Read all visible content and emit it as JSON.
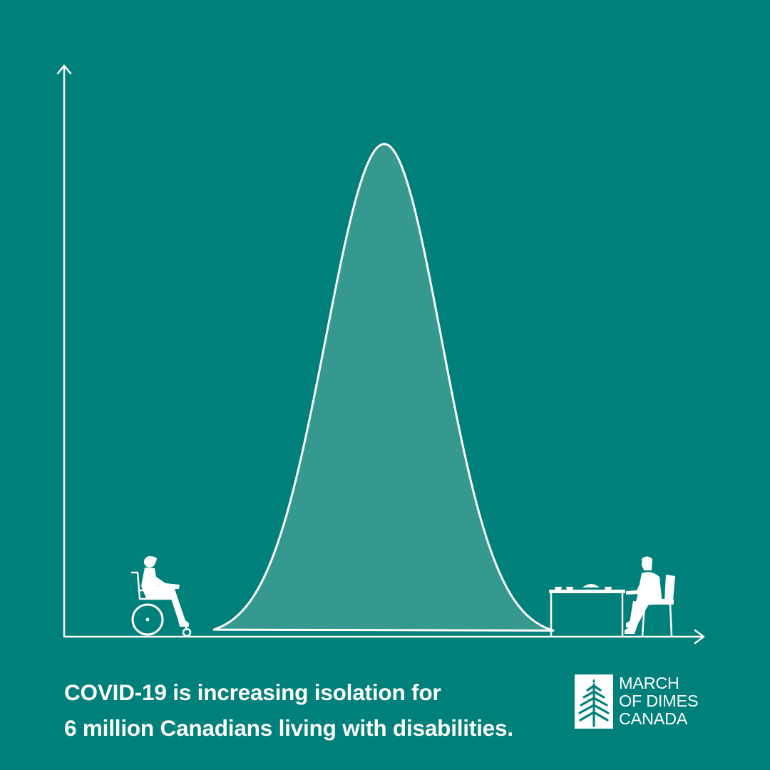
{
  "colors": {
    "background": "#00807a",
    "curve_fill": "#35998f",
    "line": "#ffffff"
  },
  "chart_data": {
    "type": "area",
    "shape": "bell-curve",
    "title": "",
    "xlabel": "",
    "ylabel": "",
    "grid": false,
    "legend": "none",
    "annotations": [
      {
        "icon": "wheelchair-person-icon",
        "position": "left"
      },
      {
        "icon": "person-at-table-icon",
        "position": "right"
      }
    ]
  },
  "caption": {
    "line1": "COVID-19 is increasing isolation for",
    "line2": "6 million Canadians living with disabilities."
  },
  "logo": {
    "icon": "maple-tree-mark-icon",
    "line1": "MARCH",
    "line2": "OF DIMES",
    "line3": "CANADA"
  }
}
